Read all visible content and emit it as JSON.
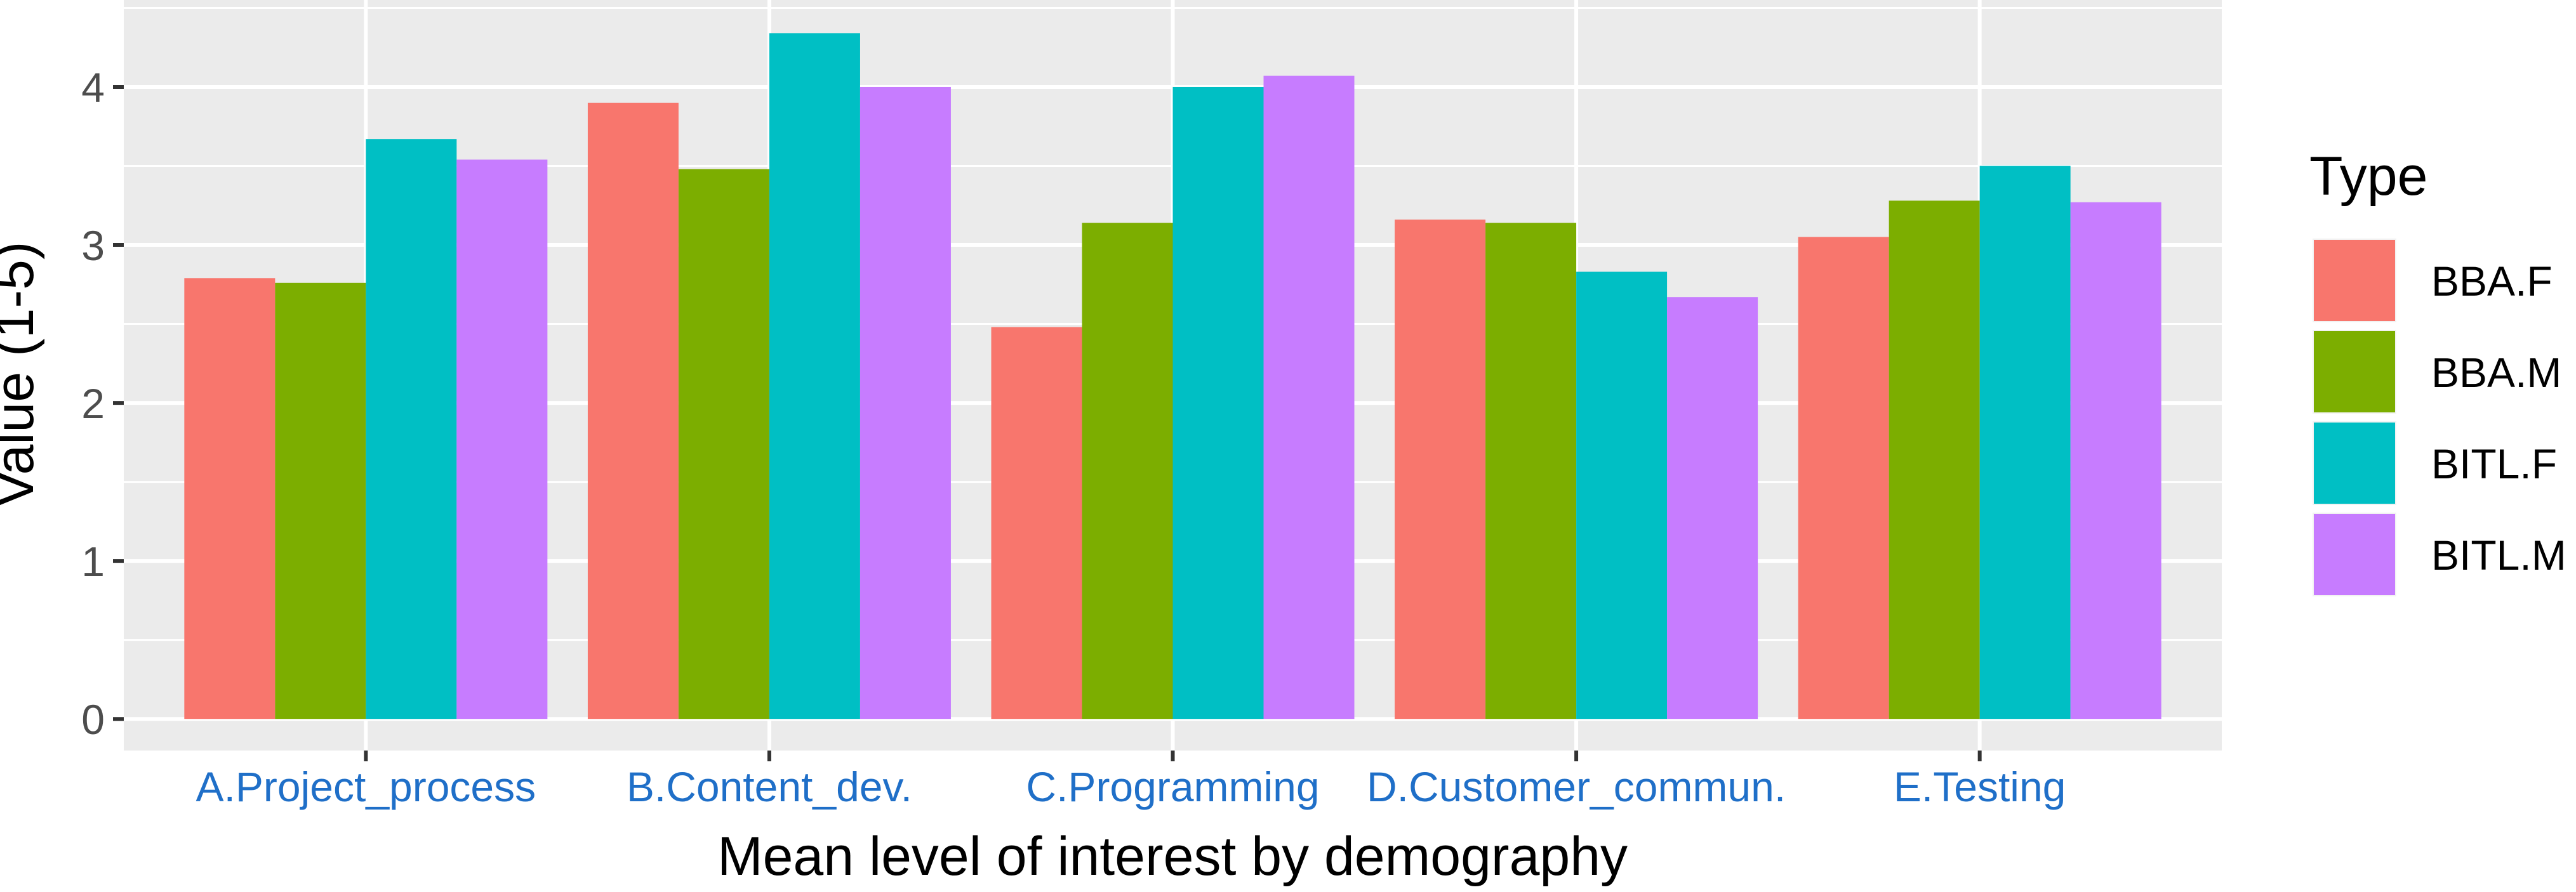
{
  "chart_data": {
    "type": "bar",
    "title": "",
    "xlabel": "Mean level of interest by demography",
    "ylabel": "Value (1-5)",
    "ylim": [
      -0.2,
      4.55
    ],
    "yticks": [
      0,
      1,
      2,
      3,
      4
    ],
    "ytick_labels": [
      "0",
      "1",
      "2",
      "3",
      "4"
    ],
    "categories": [
      "A.Project_process",
      "B.Content_dev.",
      "C.Programming",
      "D.Customer_commun.",
      "E.Testing"
    ],
    "series": [
      {
        "name": "BBA.F",
        "color": "#F8766D",
        "values": [
          2.79,
          3.9,
          2.48,
          3.16,
          3.05
        ]
      },
      {
        "name": "BBA.M",
        "color": "#7CAE00",
        "values": [
          2.76,
          3.48,
          3.14,
          3.14,
          3.28
        ]
      },
      {
        "name": "BITL.F",
        "color": "#00BFC4",
        "values": [
          3.67,
          4.34,
          4.0,
          2.83,
          3.5
        ]
      },
      {
        "name": "BITL.M",
        "color": "#C77CFF",
        "values": [
          3.54,
          4.0,
          4.07,
          2.67,
          3.27
        ]
      }
    ],
    "grid": true,
    "legend": {
      "title": "Type",
      "placement": "right"
    },
    "colors": {
      "panel_background": "#EBEBEB",
      "grid_line": "#FFFFFF",
      "category_label": "#1F6FC8",
      "tick_label": "#4D4D4D",
      "axis_title": "#000000"
    }
  }
}
